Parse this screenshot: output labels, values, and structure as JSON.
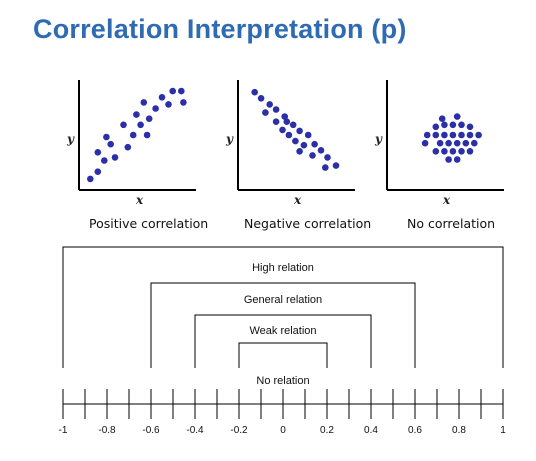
{
  "title": "Correlation Interpretation (p)",
  "dot_color": "#2b2fa8",
  "title_color": "#2f6bb3",
  "scatter_plots": [
    {
      "caption": "Positive correlation",
      "y_label": "y",
      "x_label": "x",
      "points": [
        [
          0.05,
          0.07
        ],
        [
          0.12,
          0.14
        ],
        [
          0.18,
          0.25
        ],
        [
          0.12,
          0.33
        ],
        [
          0.28,
          0.28
        ],
        [
          0.24,
          0.41
        ],
        [
          0.4,
          0.38
        ],
        [
          0.2,
          0.48
        ],
        [
          0.36,
          0.6
        ],
        [
          0.45,
          0.5
        ],
        [
          0.52,
          0.6
        ],
        [
          0.58,
          0.5
        ],
        [
          0.48,
          0.7
        ],
        [
          0.6,
          0.66
        ],
        [
          0.66,
          0.76
        ],
        [
          0.72,
          0.87
        ],
        [
          0.78,
          0.8
        ],
        [
          0.82,
          0.93
        ],
        [
          0.9,
          0.93
        ],
        [
          0.55,
          0.82
        ],
        [
          0.92,
          0.82
        ]
      ]
    },
    {
      "caption": "Negative correlation",
      "y_label": "y",
      "x_label": "x",
      "points": [
        [
          0.1,
          0.92
        ],
        [
          0.16,
          0.86
        ],
        [
          0.24,
          0.8
        ],
        [
          0.2,
          0.72
        ],
        [
          0.3,
          0.75
        ],
        [
          0.38,
          0.68
        ],
        [
          0.3,
          0.63
        ],
        [
          0.46,
          0.6
        ],
        [
          0.36,
          0.55
        ],
        [
          0.42,
          0.5
        ],
        [
          0.52,
          0.54
        ],
        [
          0.6,
          0.5
        ],
        [
          0.48,
          0.44
        ],
        [
          0.56,
          0.4
        ],
        [
          0.66,
          0.41
        ],
        [
          0.72,
          0.35
        ],
        [
          0.64,
          0.3
        ],
        [
          0.78,
          0.28
        ],
        [
          0.86,
          0.2
        ],
        [
          0.76,
          0.18
        ],
        [
          0.52,
          0.34
        ],
        [
          0.4,
          0.63
        ]
      ]
    },
    {
      "caption": "No correlation",
      "y_label": "y",
      "x_label": "x",
      "points": [
        [
          0.4,
          0.58
        ],
        [
          0.48,
          0.6
        ],
        [
          0.56,
          0.6
        ],
        [
          0.64,
          0.6
        ],
        [
          0.72,
          0.58
        ],
        [
          0.32,
          0.5
        ],
        [
          0.4,
          0.5
        ],
        [
          0.48,
          0.5
        ],
        [
          0.56,
          0.5
        ],
        [
          0.64,
          0.5
        ],
        [
          0.72,
          0.5
        ],
        [
          0.8,
          0.5
        ],
        [
          0.3,
          0.42
        ],
        [
          0.44,
          0.42
        ],
        [
          0.52,
          0.42
        ],
        [
          0.6,
          0.42
        ],
        [
          0.68,
          0.42
        ],
        [
          0.76,
          0.42
        ],
        [
          0.4,
          0.34
        ],
        [
          0.48,
          0.34
        ],
        [
          0.56,
          0.34
        ],
        [
          0.64,
          0.34
        ],
        [
          0.72,
          0.34
        ],
        [
          0.52,
          0.26
        ],
        [
          0.6,
          0.26
        ],
        [
          0.46,
          0.66
        ],
        [
          0.6,
          0.68
        ]
      ]
    }
  ],
  "relation_brackets": [
    {
      "label": "High relation",
      "from": -1,
      "to": 1
    },
    {
      "label": "General relation",
      "from": -0.6,
      "to": 0.6
    },
    {
      "label": "Weak relation",
      "from": -0.4,
      "to": 0.4
    },
    {
      "label": "No relation",
      "from": -0.2,
      "to": 0.2
    }
  ],
  "number_line": {
    "min": -1,
    "max": 1,
    "ticks": [
      -1,
      -0.9,
      -0.8,
      -0.7,
      -0.6,
      -0.5,
      -0.4,
      -0.3,
      -0.2,
      -0.1,
      0,
      0.1,
      0.2,
      0.3,
      0.4,
      0.5,
      0.6,
      0.7,
      0.8,
      0.9,
      1
    ],
    "tick_labels": [
      "-1",
      "-0.8",
      "-0.6",
      "-0.4",
      "-0.2",
      "0",
      "0.2",
      "0.4",
      "0.6",
      "0.8",
      "1"
    ]
  }
}
